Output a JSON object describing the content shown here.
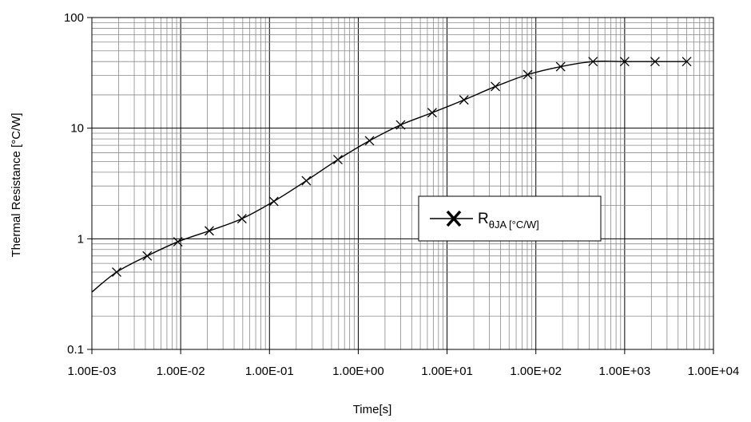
{
  "chart_data": {
    "type": "line",
    "title": "",
    "xlabel": "Time[s]",
    "ylabel": "Thermal Resistance [°C/W]",
    "x_scale": "log",
    "y_scale": "log",
    "xlim": [
      0.001,
      10000
    ],
    "ylim": [
      0.1,
      100
    ],
    "x_ticks": [
      0.001,
      0.01,
      0.1,
      1,
      10,
      100,
      1000,
      10000
    ],
    "x_tick_labels": [
      "1.00E-03",
      "1.00E-02",
      "1.00E-01",
      "1.00E+00",
      "1.00E+01",
      "1.00E+02",
      "1.00E+03",
      "1.00E+04"
    ],
    "y_ticks": [
      0.1,
      1,
      10,
      100
    ],
    "y_tick_labels": [
      "0.1",
      "1",
      "10",
      "100"
    ],
    "grid": true,
    "legend_position": "center-right",
    "legend": {
      "main": "R",
      "sub": "θJA [°C/W]"
    },
    "series": [
      {
        "name": "RθJA [°C/W]",
        "color": "#000000",
        "marker": "x",
        "curve_start": [
          0.001,
          0.33
        ],
        "points": [
          [
            0.0019,
            0.5
          ],
          [
            0.0042,
            0.7
          ],
          [
            0.0093,
            0.94
          ],
          [
            0.021,
            1.18
          ],
          [
            0.049,
            1.52
          ],
          [
            0.112,
            2.18
          ],
          [
            0.26,
            3.35
          ],
          [
            0.59,
            5.2
          ],
          [
            1.34,
            7.7
          ],
          [
            3.0,
            10.7
          ],
          [
            6.8,
            13.8
          ],
          [
            15.5,
            18.0
          ],
          [
            35,
            23.8
          ],
          [
            81,
            30.5
          ],
          [
            190,
            36.0
          ],
          [
            440,
            40.0
          ],
          [
            1000,
            40.0
          ],
          [
            2200,
            40.0
          ],
          [
            5000,
            40.0
          ]
        ]
      }
    ]
  }
}
